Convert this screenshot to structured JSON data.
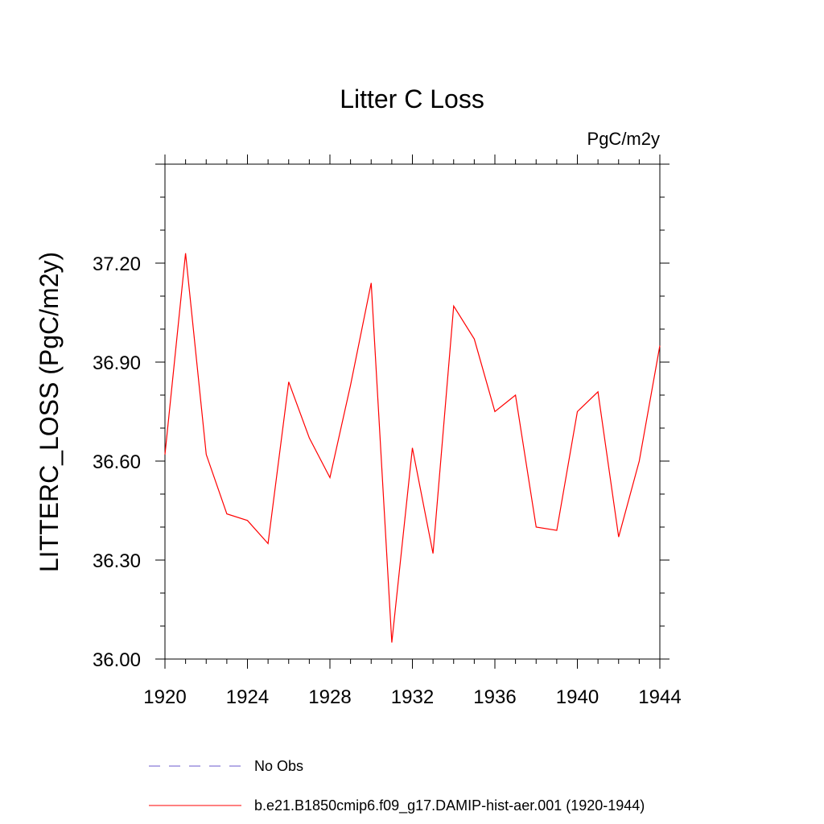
{
  "chart_data": {
    "type": "line",
    "title": "Litter C Loss",
    "units_label": "PgC/m2y",
    "ylabel": "LITTERC_LOSS  (PgC/m2y)",
    "xlabel": "",
    "xlim": [
      1920,
      1944
    ],
    "ylim": [
      36.0,
      37.5
    ],
    "x_ticks": [
      1920,
      1924,
      1928,
      1932,
      1936,
      1940,
      1944
    ],
    "x_tick_labels": [
      "1920",
      "1924",
      "1928",
      "1932",
      "1936",
      "1940",
      "1944"
    ],
    "y_ticks": [
      36.0,
      36.3,
      36.6,
      36.9,
      37.2
    ],
    "y_tick_labels": [
      "36.00",
      "36.30",
      "36.60",
      "36.90",
      "37.20"
    ],
    "grid": false,
    "legend_position": "bottom",
    "legend": [
      {
        "label": "No Obs",
        "color": "#6a5acd",
        "dash": true
      },
      {
        "label": "b.e21.B1850cmip6.f09_g17.DAMIP-hist-aer.001 (1920-1944)",
        "color": "#ff0000",
        "dash": false
      }
    ],
    "series": [
      {
        "name": "b.e21.B1850cmip6.f09_g17.DAMIP-hist-aer.001 (1920-1944)",
        "color": "#ff0000",
        "x": [
          1920,
          1921,
          1922,
          1923,
          1924,
          1925,
          1926,
          1927,
          1928,
          1929,
          1930,
          1931,
          1932,
          1933,
          1934,
          1935,
          1936,
          1937,
          1938,
          1939,
          1940,
          1941,
          1942,
          1943,
          1944
        ],
        "y": [
          36.62,
          37.23,
          36.62,
          36.44,
          36.42,
          36.35,
          36.84,
          36.67,
          36.55,
          36.83,
          37.14,
          36.05,
          36.64,
          36.32,
          37.07,
          36.97,
          36.75,
          36.8,
          36.4,
          36.39,
          36.75,
          36.81,
          36.37,
          36.6,
          36.95
        ]
      }
    ]
  }
}
